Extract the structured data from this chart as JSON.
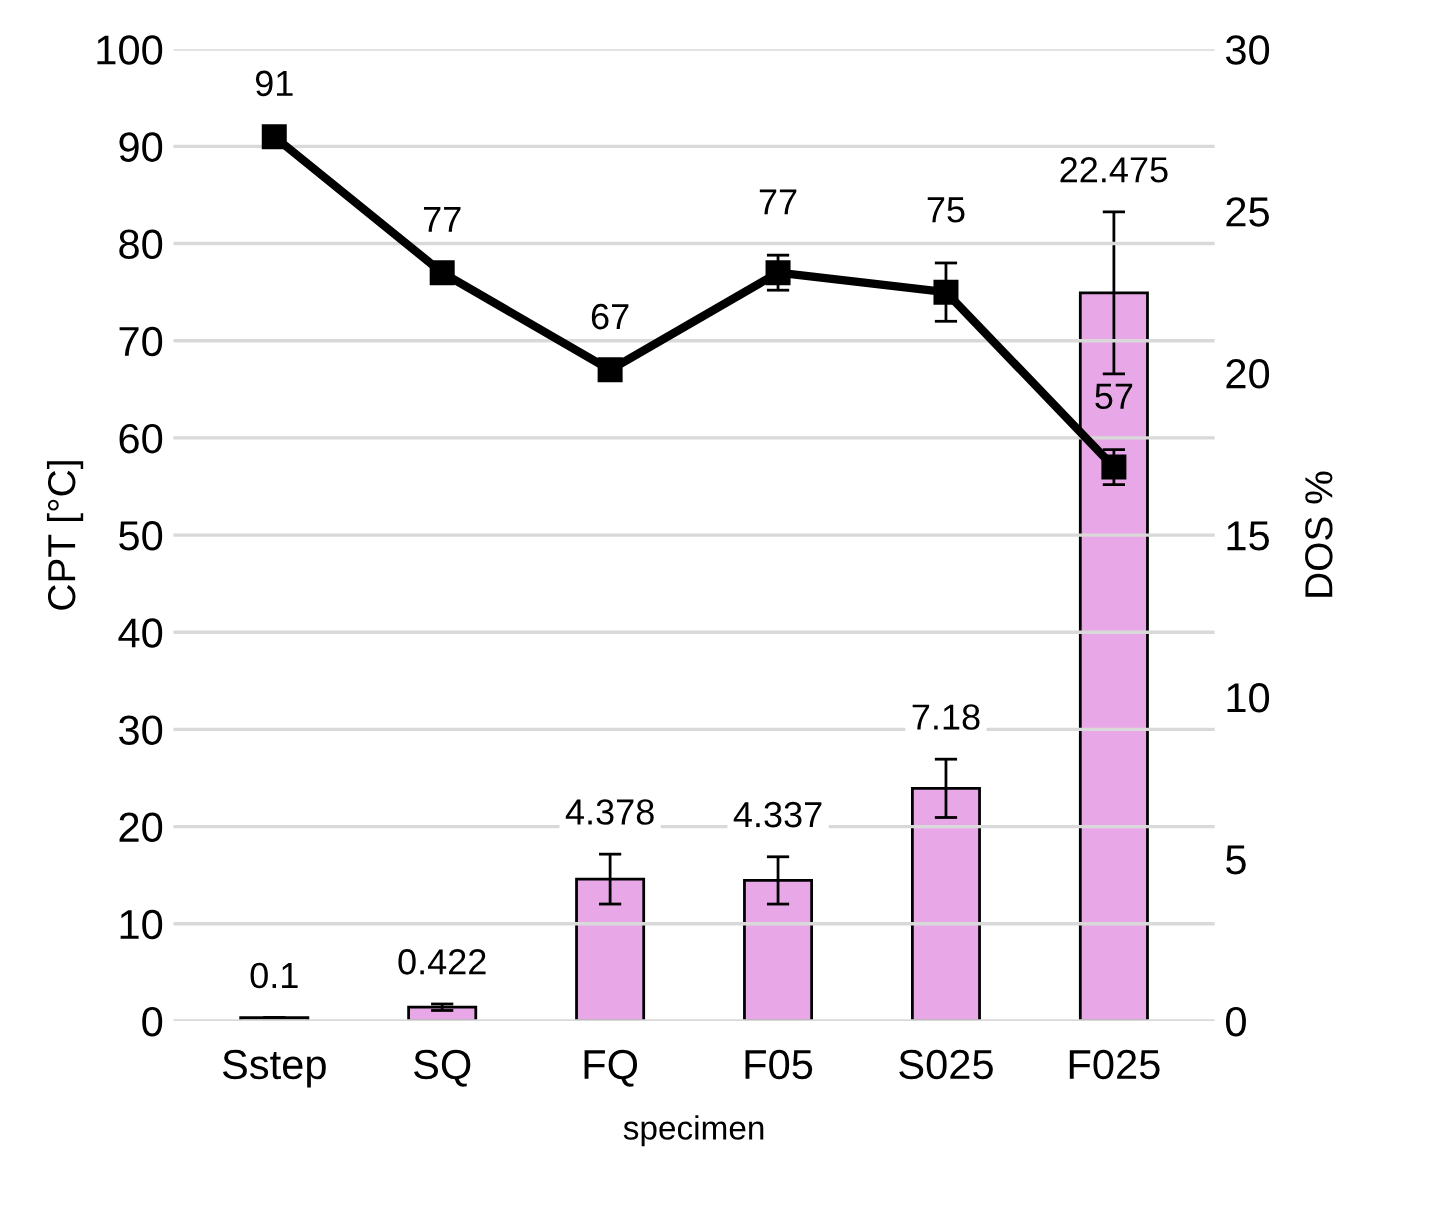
{
  "chart_data": {
    "type": "bar",
    "xlabel": "specimen",
    "ylabel": "CPT [°C]",
    "y2label": "DOS %",
    "categories": [
      "Sstep",
      "SQ",
      "FQ",
      "F05",
      "S025",
      "F025"
    ],
    "series": [
      {
        "axis": "y2",
        "color": "#e8a8e8",
        "values": [
          0.1,
          0.422,
          4.378,
          4.337,
          7.18,
          22.475
        ],
        "errors": [
          null,
          0.1,
          0.77,
          0.73,
          0.9,
          2.5
        ]
      },
      {
        "type": "line",
        "axis": "y",
        "color": "#000000",
        "marker": "square",
        "values": [
          91,
          77,
          67,
          77,
          75,
          57
        ],
        "errors": [
          null,
          null,
          null,
          1.8,
          3,
          1.8
        ]
      }
    ],
    "ylim": [
      0,
      100
    ],
    "yticks": [
      0,
      10,
      20,
      30,
      40,
      50,
      60,
      70,
      80,
      90,
      100
    ],
    "y2lim": [
      0,
      30
    ],
    "y2ticks": [
      0,
      5,
      10,
      15,
      20,
      25,
      30
    ],
    "grid": "y",
    "legend": false,
    "data_labels": true
  }
}
